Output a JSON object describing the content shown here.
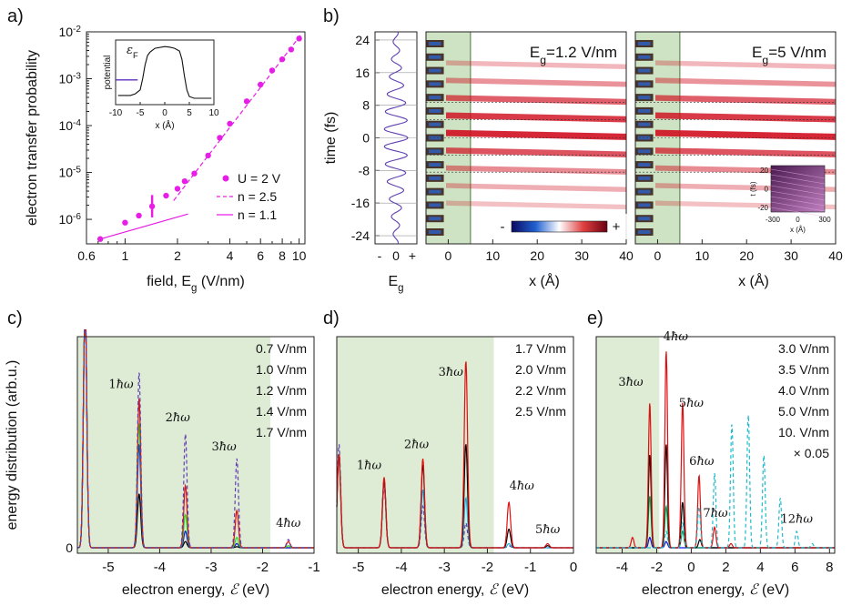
{
  "chart_data": [
    {
      "id": "a",
      "panel_label": "a)",
      "type": "scatter",
      "xscale": "log",
      "yscale": "log",
      "xlabel": "field, E",
      "xlabel_sub": "g",
      "xlabel_unit": " (V/nm)",
      "ylabel": "electron transfer probability",
      "xlim": [
        0.6,
        10.8
      ],
      "ylim": [
        3e-07,
        0.01
      ],
      "xticks": [
        0.6,
        1,
        2,
        4,
        6,
        8,
        10
      ],
      "xtick_labels": [
        "0.6",
        "1",
        "2",
        "4",
        "6",
        "8",
        "10"
      ],
      "yticks": [
        1e-06,
        1e-05,
        0.0001,
        0.001,
        0.01
      ],
      "ytick_labels": [
        [
          "10",
          "-6"
        ],
        [
          "10",
          "-5"
        ],
        [
          "10",
          "-4"
        ],
        [
          "10",
          "-3"
        ],
        [
          "10",
          "-2"
        ]
      ],
      "color": "#e61ee6",
      "series": [
        {
          "name": "U = 2 V",
          "style": "dots",
          "x": [
            0.72,
            1.0,
            1.2,
            1.43,
            1.72,
            2.0,
            2.2,
            2.5,
            3.0,
            3.5,
            4.0,
            5.0,
            6.0,
            7.0,
            8.0,
            9.0,
            10.0
          ],
          "y": [
            3.8e-07,
            8.5e-07,
            1.2e-06,
            1.9e-06,
            3.2e-06,
            4.5e-06,
            6.5e-06,
            9.5e-06,
            2.3e-05,
            5.5e-05,
            0.00011,
            0.00033,
            0.00075,
            0.0015,
            0.0026,
            0.0042,
            0.0072
          ]
        },
        {
          "name": "n = 2.5",
          "style": "dashed",
          "x": [
            1.9,
            10.2
          ],
          "y": [
            2.5e-06,
            0.0085
          ]
        },
        {
          "name": "n = 1.1",
          "style": "solid",
          "x": [
            0.72,
            2.3
          ],
          "y": [
            3.8e-07,
            1.3e-06
          ]
        }
      ],
      "marker_bar": {
        "x": 1.43,
        "y_range": [
          1.1e-06,
          3.3e-06
        ]
      },
      "inset": {
        "xlabel": "x (Å)",
        "ylabel": "potential",
        "xlim": [
          -10,
          10
        ],
        "xticks": [
          -10,
          -5,
          0,
          5,
          10
        ],
        "xtick_labels": [
          "-10",
          "-5",
          "0",
          "5",
          "10"
        ],
        "fermi_label": "ε",
        "fermi_sub": "F",
        "curve_x": [
          -9.5,
          -7,
          -6,
          -5,
          -4.5,
          -4,
          -3.5,
          -3,
          -2,
          0,
          1,
          2,
          3,
          3.5,
          4,
          4.5,
          5,
          6,
          8,
          9.5
        ],
        "curve_y": [
          0.1,
          0.1,
          0.13,
          0.2,
          0.4,
          0.65,
          0.82,
          0.88,
          0.95,
          0.98,
          0.97,
          0.95,
          0.9,
          0.75,
          0.45,
          0.2,
          0.08,
          0.05,
          0.05,
          0.05
        ]
      }
    },
    {
      "id": "b",
      "panel_label": "b)",
      "type": "heatmap",
      "ylabel": "time (fs)",
      "yticks": [
        -24,
        -16,
        -8,
        0,
        8,
        16,
        24
      ],
      "ytick_labels": [
        "-24",
        "-16",
        "-8",
        "0",
        "8",
        "16",
        "24"
      ],
      "field_axis": {
        "xlabel": "E",
        "xlabel_sub": "g",
        "xtick_labels": [
          "-",
          "0",
          "+"
        ]
      },
      "maps": [
        {
          "title": "E",
          "title_sub": "g",
          "title_rest": "=1.2 V/nm",
          "xlabel": "x (Å)",
          "xlim": [
            -5,
            40
          ],
          "xticks": [
            0,
            10,
            20,
            30,
            40
          ],
          "xtick_labels": [
            "0",
            "10",
            "20",
            "30",
            "40"
          ]
        },
        {
          "title": "E",
          "title_sub": "g",
          "title_rest": "=5 V/nm",
          "xlabel": "x (Å)",
          "xlim": [
            -5,
            40
          ],
          "xticks": [
            0,
            10,
            20,
            30,
            40
          ],
          "xtick_labels": [
            "0",
            "10",
            "20",
            "30",
            "40"
          ]
        }
      ],
      "colorbar": {
        "minus": "-",
        "plus": "+"
      },
      "inset": {
        "xlabel": "x (Å)",
        "ylabel": "t (fs)",
        "xtick_labels": [
          "-300",
          "0",
          "300"
        ],
        "ytick_labels": [
          "20",
          "0",
          "-20"
        ]
      }
    },
    {
      "id": "c",
      "panel_label": "c)",
      "type": "line",
      "xlabel": "electron energy, ",
      "xlabel_sym": "ℰ",
      "xlabel_unit": " (eV)",
      "ylabel": "energy distribution (arb.u.)",
      "xlim": [
        -5.6,
        -1.0
      ],
      "xticks": [
        -5,
        -4,
        -3,
        -2,
        -1
      ],
      "xtick_labels": [
        "-5",
        "-4",
        "-3",
        "-2",
        "-1"
      ],
      "yzero_label": "0",
      "shade_end": -1.85,
      "series": [
        {
          "name": "0.7 V/nm",
          "color": "#000000",
          "dash": false,
          "peaks": [
            [
              -5.45,
              1.2
            ],
            [
              -4.4,
              0.26
            ],
            [
              -3.5,
              0.03
            ],
            [
              -2.5,
              0.005
            ]
          ]
        },
        {
          "name": "1.0 V/nm",
          "color": "#1010e0",
          "dash": false,
          "peaks": [
            [
              -5.45,
              1.2
            ],
            [
              -4.4,
              0.5
            ],
            [
              -3.5,
              0.08
            ],
            [
              -2.5,
              0.02
            ]
          ]
        },
        {
          "name": "1.2 V/nm",
          "color": "#22dd22",
          "dash": false,
          "peaks": [
            [
              -5.45,
              1.2
            ],
            [
              -4.4,
              0.6
            ],
            [
              -3.5,
              0.16
            ],
            [
              -2.5,
              0.05
            ],
            [
              -1.5,
              0.01
            ]
          ]
        },
        {
          "name": "1.4 V/nm",
          "color": "#e01010",
          "dash": false,
          "peaks": [
            [
              -5.45,
              1.2
            ],
            [
              -4.4,
              0.72
            ],
            [
              -3.5,
              0.3
            ],
            [
              -2.5,
              0.18
            ],
            [
              -1.5,
              0.03
            ]
          ]
        },
        {
          "name": "1.7 V/nm",
          "color": "#6040b0",
          "dash": true,
          "peaks": [
            [
              -5.45,
              1.2
            ],
            [
              -4.4,
              0.85
            ],
            [
              -3.5,
              0.55
            ],
            [
              -2.5,
              0.43
            ],
            [
              -1.5,
              0.04
            ]
          ]
        }
      ],
      "annotations": [
        [
          "1ħω",
          -4.75,
          0.77
        ],
        [
          "2ħω",
          -3.65,
          0.61
        ],
        [
          "3ħω",
          -2.75,
          0.47
        ],
        [
          "4ħω",
          -1.5,
          0.1
        ]
      ]
    },
    {
      "id": "d",
      "panel_label": "d)",
      "type": "line",
      "xlabel": "electron energy, ",
      "xlabel_sym": "ℰ",
      "xlabel_unit": " (eV)",
      "xlim": [
        -5.5,
        0
      ],
      "xticks": [
        -5,
        -4,
        -3,
        -2,
        -1,
        0
      ],
      "xtick_labels": [
        "-5",
        "-4",
        "-3",
        "-2",
        "-1",
        "0"
      ],
      "shade_end": -1.85,
      "series": [
        {
          "name": "1.7 V/nm",
          "color": "#6040b0",
          "dash": true,
          "peaks": [
            [
              -5.45,
              0.5
            ],
            [
              -4.4,
              0.3
            ],
            [
              -3.5,
              0.2
            ],
            [
              -2.5,
              0.12
            ],
            [
              -1.5,
              0.01
            ]
          ]
        },
        {
          "name": "2.0 V/nm",
          "color": "#22aadd",
          "dash": false,
          "peaks": [
            [
              -5.45,
              0.45
            ],
            [
              -4.4,
              0.33
            ],
            [
              -3.5,
              0.28
            ],
            [
              -2.5,
              0.24
            ],
            [
              -1.5,
              0.02
            ]
          ]
        },
        {
          "name": "2.2 V/nm",
          "color": "#000000",
          "dash": false,
          "peaks": [
            [
              -5.45,
              0.45
            ],
            [
              -4.4,
              0.33
            ],
            [
              -3.5,
              0.4
            ],
            [
              -2.5,
              0.5
            ],
            [
              -1.5,
              0.09
            ],
            [
              -0.6,
              0.01
            ]
          ]
        },
        {
          "name": "2.5 V/nm",
          "color": "#e01010",
          "dash": false,
          "peaks": [
            [
              -5.45,
              0.45
            ],
            [
              -4.4,
              0.34
            ],
            [
              -3.5,
              0.43
            ],
            [
              -2.5,
              0.9
            ],
            [
              -1.5,
              0.22
            ],
            [
              -0.6,
              0.02
            ]
          ]
        }
      ],
      "annotations": [
        [
          "1ħω",
          -4.75,
          0.38
        ],
        [
          "2ħω",
          -3.65,
          0.48
        ],
        [
          "3ħω",
          -2.85,
          0.83
        ],
        [
          "4ħω",
          -1.2,
          0.28
        ],
        [
          "5ħω",
          -0.6,
          0.07
        ]
      ]
    },
    {
      "id": "e",
      "panel_label": "e)",
      "type": "line",
      "xlabel": "electron energy, ",
      "xlabel_sym": "ℰ",
      "xlabel_unit": " (eV)",
      "xlim": [
        -5.5,
        8.3
      ],
      "xticks": [
        -4,
        -2,
        0,
        2,
        4,
        6,
        8
      ],
      "xtick_labels": [
        "-4",
        "-2",
        "0",
        "2",
        "4",
        "6",
        "8"
      ],
      "shade_end": -1.85,
      "scale_note": "× 0.05",
      "series": [
        {
          "name": "3.0 V/nm",
          "color": "#1010e0",
          "dash": false,
          "peaks": [
            [
              -2.4,
              0.05
            ],
            [
              -1.45,
              0.03
            ]
          ]
        },
        {
          "name": "3.5 V/nm",
          "color": "#119944",
          "dash": false,
          "peaks": [
            [
              -2.4,
              0.25
            ],
            [
              -1.45,
              0.2
            ],
            [
              -0.5,
              0.08
            ]
          ]
        },
        {
          "name": "4.0 V/nm",
          "color": "#000000",
          "dash": false,
          "peaks": [
            [
              -2.4,
              0.45
            ],
            [
              -1.45,
              0.5
            ],
            [
              -0.5,
              0.22
            ],
            [
              0.5,
              0.04
            ]
          ]
        },
        {
          "name": "5.0 V/nm",
          "color": "#e01010",
          "dash": false,
          "peaks": [
            [
              -3.4,
              0.05
            ],
            [
              -2.4,
              0.7
            ],
            [
              -1.45,
              0.95
            ],
            [
              -0.5,
              0.7
            ],
            [
              0.45,
              0.35
            ],
            [
              1.35,
              0.1
            ],
            [
              2.3,
              0.02
            ]
          ]
        },
        {
          "name": "10. V/nm",
          "color": "#22bbcc",
          "dash": true,
          "peaks": [
            [
              -1.45,
              0.08
            ],
            [
              -0.5,
              0.12
            ],
            [
              0.45,
              0.2
            ],
            [
              1.35,
              0.36
            ],
            [
              2.35,
              0.6
            ],
            [
              3.3,
              0.64
            ],
            [
              4.2,
              0.45
            ],
            [
              5.15,
              0.24
            ],
            [
              6.1,
              0.08
            ],
            [
              7.0,
              0.02
            ]
          ]
        }
      ],
      "annotations": [
        [
          "3ħω",
          -3.5,
          0.78
        ],
        [
          "4ħω",
          -0.9,
          1.0
        ],
        [
          "5ħω",
          0.0,
          0.68
        ],
        [
          "6ħω",
          0.6,
          0.4
        ],
        [
          "7ħω",
          1.4,
          0.15
        ],
        [
          "12ħω",
          6.1,
          0.12
        ]
      ]
    }
  ]
}
